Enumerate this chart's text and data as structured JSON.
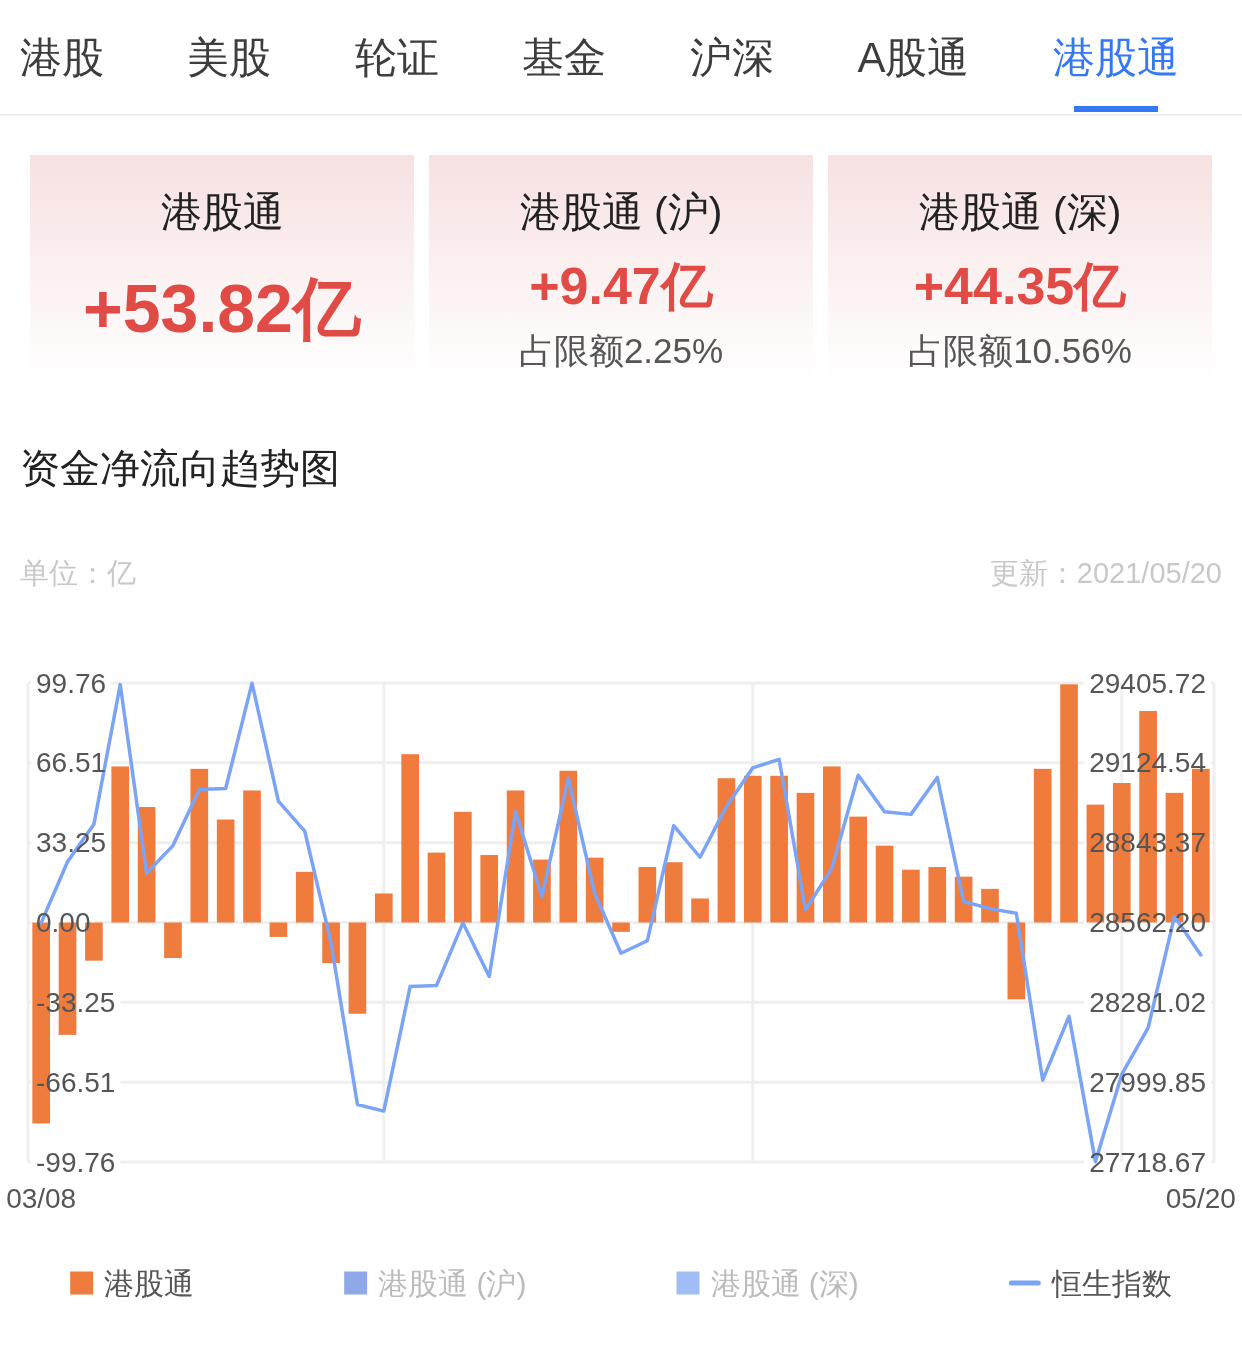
{
  "chart_data": [
    {
      "type": "other",
      "categories": [
        "港股",
        "美股",
        "轮证",
        "基金",
        "沪深",
        "A股通",
        "港股通"
      ],
      "colors": [
        "#3d3d3d",
        "#3d3d3d",
        "#3d3d3d",
        "#3d3d3d",
        "#3d3d3d",
        "#3d3d3d",
        "#3478f6"
      ]
    },
    {
      "type": "other",
      "title": "港股通",
      "annotations": [
        "+53.82亿"
      ]
    },
    {
      "type": "other",
      "title": "港股通 (沪)",
      "annotations": [
        "+9.47亿",
        "占限额2.25%"
      ]
    },
    {
      "type": "other",
      "title": "港股通 (深)",
      "annotations": [
        "+44.35亿",
        "占限额10.56%"
      ]
    },
    {
      "type": "bar",
      "title": "资金净流向趋势图",
      "ylabel": "单位：亿",
      "annotations": [
        "更新：2021/05/20"
      ],
      "categories": [
        "03/08",
        null,
        null,
        null,
        null,
        null,
        null,
        null,
        null,
        null,
        null,
        null,
        null,
        null,
        null,
        null,
        null,
        null,
        null,
        null,
        null,
        null,
        null,
        null,
        null,
        null,
        null,
        null,
        null,
        null,
        null,
        null,
        null,
        null,
        null,
        null,
        null,
        null,
        null,
        null,
        null,
        null,
        null,
        null,
        "05/20"
      ],
      "series": [
        {
          "name": "港股通",
          "color": "#ef7b3d",
          "values": [
            -83.7,
            -46.8,
            -15.9,
            65.0,
            48.1,
            -14.8,
            64.0,
            42.9,
            55.0,
            -6.0,
            21.1,
            -16.9,
            -38.0,
            12.1,
            70.1,
            29.1,
            46.1,
            28.1,
            55.0,
            26.2,
            63.2,
            27.0,
            -3.9,
            23.1,
            25.1,
            10.0,
            60.1,
            61.1,
            61.1,
            54.0,
            65.0,
            44.1,
            32.0,
            22.0,
            23.1,
            19.1,
            14.0,
            -32.0,
            64.0,
            99.2,
            49.1,
            58.1,
            88.1,
            54.0,
            64.0
          ]
        },
        {
          "name": "港股通 (沪)",
          "type": "area",
          "color": "#8ea8e8",
          "values": [
            null,
            null,
            null,
            null,
            null,
            null,
            null,
            null,
            null,
            null,
            null,
            null,
            null,
            null,
            null,
            null,
            null,
            null,
            null,
            null,
            null,
            null,
            null,
            null,
            null,
            null,
            null,
            null,
            null,
            null,
            null,
            null,
            null,
            null,
            null,
            null,
            null,
            null,
            null,
            null,
            null,
            null,
            null,
            null,
            null
          ]
        },
        {
          "name": "港股通 (深)",
          "type": "area",
          "color": "#a0bdf8",
          "values": [
            null,
            null,
            null,
            null,
            null,
            null,
            null,
            null,
            null,
            null,
            null,
            null,
            null,
            null,
            null,
            null,
            null,
            null,
            null,
            null,
            null,
            null,
            null,
            null,
            null,
            null,
            null,
            null,
            null,
            null,
            null,
            null,
            null,
            null,
            null,
            null,
            null,
            null,
            null,
            null,
            null,
            null,
            null,
            null,
            null
          ]
        },
        {
          "name": "恒生指数",
          "type": "line",
          "axis": "y2",
          "color": "#7ba4f6",
          "values": [
            28561,
            28776,
            28908,
            29400,
            28736,
            28833,
            29031,
            29034,
            29405,
            28990,
            28884,
            28490,
            27921,
            27898,
            28337,
            28340,
            28561,
            28372,
            28952,
            28653,
            29070,
            28665,
            28454,
            28498,
            28903,
            28792,
            28971,
            29107,
            29137,
            28607,
            28753,
            29081,
            28952,
            28943,
            29073,
            28636,
            28611,
            28595,
            28007,
            28232,
            27720,
            28027,
            28191,
            28583,
            28448
          ]
        }
      ],
      "ylim": [
        -99.76,
        99.76
      ],
      "yticks": [
        -99.76,
        -66.51,
        -33.25,
        {
          "value": 0,
          "label": "0.00"
        },
        33.25,
        66.51,
        99.76
      ],
      "y2lim": [
        27718.67,
        29405.72
      ],
      "y2ticks": [
        27718.67,
        27999.85,
        28281.02,
        {
          "value": 28562.2,
          "label": "28562.20"
        },
        28843.37,
        29124.54,
        29405.72
      ],
      "grid": true,
      "legend": "bottom"
    }
  ]
}
